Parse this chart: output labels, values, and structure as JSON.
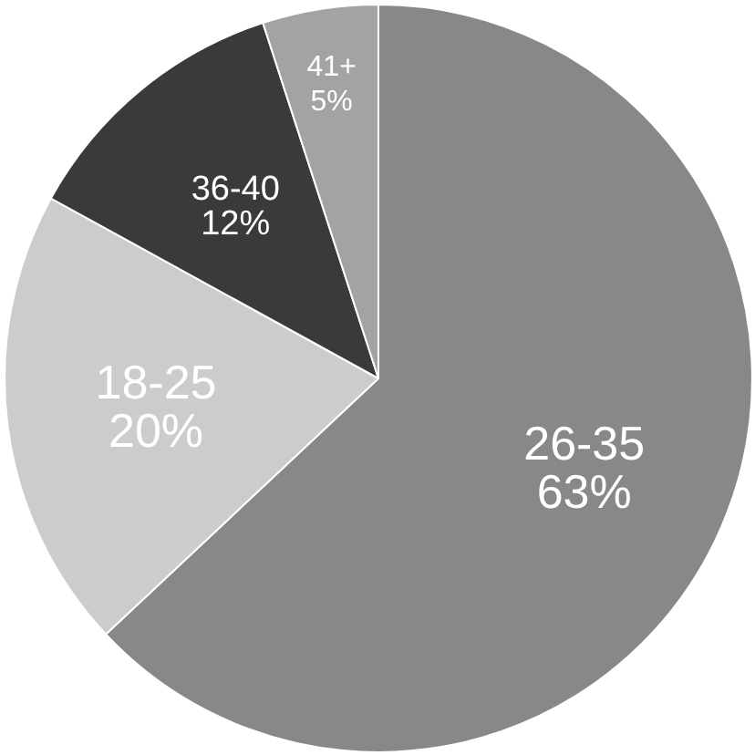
{
  "chart_data": {
    "type": "pie",
    "categories": [
      "26-35",
      "18-25",
      "36-40",
      "41+"
    ],
    "values": [
      63,
      20,
      12,
      5
    ],
    "value_labels": [
      "63%",
      "20%",
      "12%",
      "5%"
    ],
    "colors": [
      "#888888",
      "#cccccc",
      "#3a3a3a",
      "#a3a3a3"
    ]
  }
}
